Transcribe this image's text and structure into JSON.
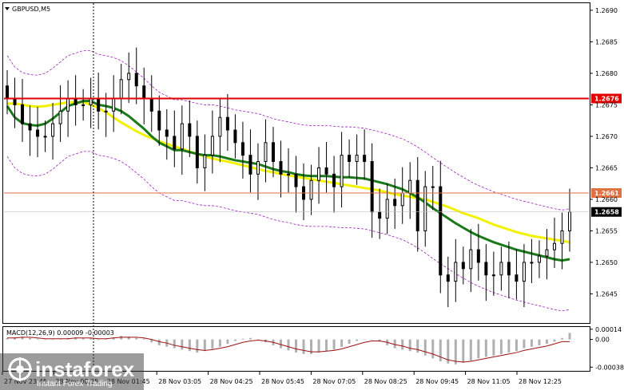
{
  "chart_data": [
    {
      "type": "candlestick",
      "symbol_label": "GBPUSD,M5",
      "price_axis_ticks": [
        "1.2690",
        "1.2685",
        "1.2680",
        "1.2675",
        "1.2670",
        "1.2665",
        "1.2660",
        "1.2655",
        "1.2650",
        "1.2645"
      ],
      "price_axis_tick_values": [
        1.269,
        1.2685,
        1.268,
        1.2675,
        1.267,
        1.2665,
        1.266,
        1.2655,
        1.265,
        1.2645
      ],
      "ylim": [
        1.26405,
        1.2691
      ],
      "time_labels": [
        "27 Nov 23:45",
        "28 Nov 00:25",
        "28 Nov 01:45",
        "28 Nov 03:05",
        "28 Nov 04:25",
        "28 Nov 05:45",
        "28 Nov 07:05",
        "28 Nov 08:25",
        "28 Nov 09:45",
        "28 Nov 11:05",
        "28 Nov 12:25"
      ],
      "horizontal_levels": [
        {
          "label": "1.2676",
          "value": 1.2676,
          "color": "#e00000"
        },
        {
          "label": "1.2661",
          "value": 1.2661,
          "color": "#e07040"
        },
        {
          "label": "1.2658",
          "value": 1.2658,
          "color": "#000000"
        }
      ],
      "close_series": [
        1.2676,
        1.2675,
        1.2672,
        1.2671,
        1.267,
        1.267,
        1.2672,
        1.2674,
        1.2676,
        1.2675,
        1.2675,
        1.2676,
        1.2674,
        1.2674,
        1.2676,
        1.2679,
        1.268,
        1.2678,
        1.2676,
        1.2674,
        1.2671,
        1.267,
        1.2668,
        1.2672,
        1.267,
        1.2665,
        1.2667,
        1.267,
        1.2673,
        1.2671,
        1.2669,
        1.2667,
        1.2664,
        1.2666,
        1.2669,
        1.2666,
        1.2664,
        1.2664,
        1.2662,
        1.266,
        1.2663,
        1.2665,
        1.2664,
        1.2662,
        1.2667,
        1.2666,
        1.2667,
        1.2666,
        1.2658,
        1.2657,
        1.266,
        1.2659,
        1.2661,
        1.2663,
        1.2655,
        1.2662,
        1.2662,
        1.2648,
        1.2647,
        1.265,
        1.2649,
        1.2652,
        1.265,
        1.2648,
        1.2648,
        1.265,
        1.2648,
        1.2647,
        1.265,
        1.265,
        1.2651,
        1.2652,
        1.2653,
        1.2655,
        1.2658
      ],
      "moving_averages": [
        {
          "color": "#f2f200",
          "values": [
            1.26752,
            1.26752,
            1.2675,
            1.26748,
            1.26747,
            1.26748,
            1.2675,
            1.26752,
            1.26754,
            1.26754,
            1.26754,
            1.2675,
            1.26745,
            1.26738,
            1.2673,
            1.26722,
            1.26715,
            1.26708,
            1.26702,
            1.26697,
            1.26692,
            1.26688,
            1.26684,
            1.2668,
            1.26676,
            1.26672,
            1.26668,
            1.26665,
            1.26662,
            1.2666,
            1.26657,
            1.26654,
            1.26651,
            1.26648,
            1.26645,
            1.26643,
            1.2664,
            1.26638,
            1.26636,
            1.26634,
            1.26632,
            1.2663,
            1.26628,
            1.26626,
            1.26624,
            1.26622,
            1.2662,
            1.26618,
            1.26616,
            1.26614,
            1.26611,
            1.26608,
            1.26606,
            1.26604,
            1.26602,
            1.266,
            1.26596,
            1.26592,
            1.26588,
            1.26583,
            1.26578,
            1.26574,
            1.2657,
            1.26565,
            1.2656,
            1.26556,
            1.26552,
            1.26548,
            1.26545,
            1.26542,
            1.2654,
            1.26538,
            1.26536,
            1.26534,
            1.26532
          ]
        },
        {
          "color": "#1a7a1a",
          "values": [
            1.26748,
            1.2673,
            1.26721,
            1.26718,
            1.26717,
            1.2672,
            1.26728,
            1.26738,
            1.26748,
            1.26752,
            1.26756,
            1.26756,
            1.2675,
            1.26748,
            1.26745,
            1.2674,
            1.26732,
            1.26722,
            1.26712,
            1.267,
            1.2669,
            1.26684,
            1.26678,
            1.26678,
            1.26675,
            1.26672,
            1.2667,
            1.2667,
            1.26668,
            1.26665,
            1.26662,
            1.2666,
            1.26658,
            1.26656,
            1.26652,
            1.26648,
            1.26645,
            1.26643,
            1.2664,
            1.26638,
            1.26637,
            1.26637,
            1.26637,
            1.26636,
            1.26635,
            1.26635,
            1.26634,
            1.26633,
            1.2663,
            1.26627,
            1.26624,
            1.2662,
            1.26616,
            1.2661,
            1.26603,
            1.26595,
            1.26586,
            1.26578,
            1.2657,
            1.26562,
            1.26555,
            1.26548,
            1.26542,
            1.26537,
            1.26532,
            1.26528,
            1.26524,
            1.2652,
            1.26517,
            1.26514,
            1.26511,
            1.26508,
            1.26505,
            1.26503,
            1.26505
          ]
        }
      ]
    },
    {
      "type": "histogram",
      "indicator_label": "MACD(12,26,9) 0.00009 -0.00003",
      "axis_ticks": [
        "0.00014",
        "0.00",
        "-0.00038"
      ],
      "axis_tick_values": [
        0.00014,
        0.0,
        -0.00038
      ],
      "ylim": [
        -0.00042,
        0.00016
      ],
      "histogram": [
        2e-05,
        3e-05,
        4e-05,
        2e-05,
        1e-05,
        0.0,
        0.0,
        1e-05,
        2e-05,
        3e-05,
        2e-05,
        2e-05,
        0.0,
        1e-05,
        3e-05,
        5e-05,
        4e-05,
        2e-05,
        1e-05,
        -4e-05,
        -8e-05,
        -0.0001,
        -0.00012,
        -0.00014,
        -0.00016,
        -0.00018,
        -0.00016,
        -0.00013,
        -0.0001,
        -6e-05,
        -2e-05,
        1e-05,
        2e-05,
        0.0,
        -4e-05,
        -8e-05,
        -0.00012,
        -0.00015,
        -0.00018,
        -0.0002,
        -0.0002,
        -0.00018,
        -0.00016,
        -0.00014,
        -0.0001,
        -6e-05,
        -2e-05,
        0.0,
        0.0,
        -3e-05,
        -8e-05,
        -0.00012,
        -0.00014,
        -0.00016,
        -0.00018,
        -0.00022,
        -0.00026,
        -0.0003,
        -0.00033,
        -0.00034,
        -0.00032,
        -0.00029,
        -0.00026,
        -0.00024,
        -0.00022,
        -0.0002,
        -0.00018,
        -0.00016,
        -0.00012,
        -0.0001,
        -8e-05,
        -6e-05,
        -3e-05,
        2e-05,
        9e-05
      ],
      "signal_line": [
        2e-05,
        2e-05,
        3e-05,
        3e-05,
        2e-05,
        1e-05,
        1e-05,
        1e-05,
        1e-05,
        2e-05,
        2e-05,
        2e-05,
        1e-05,
        1e-05,
        2e-05,
        3e-05,
        3e-05,
        3e-05,
        2e-05,
        0.0,
        -3e-05,
        -5e-05,
        -8e-05,
        -0.0001,
        -0.00012,
        -0.00014,
        -0.00015,
        -0.00014,
        -0.00012,
        -0.0001,
        -7e-05,
        -4e-05,
        -2e-05,
        -1e-05,
        -2e-05,
        -4e-05,
        -7e-05,
        -0.0001,
        -0.00013,
        -0.00015,
        -0.00017,
        -0.00017,
        -0.00016,
        -0.00015,
        -0.00013,
        -0.0001,
        -7e-05,
        -4e-05,
        -2e-05,
        -2e-05,
        -4e-05,
        -7e-05,
        -9e-05,
        -0.00012,
        -0.00014,
        -0.00017,
        -0.0002,
        -0.00024,
        -0.00028,
        -0.0003,
        -0.00031,
        -0.0003,
        -0.00028,
        -0.00026,
        -0.00024,
        -0.00022,
        -0.0002,
        -0.00018,
        -0.00015,
        -0.00013,
        -0.00011,
        -9e-05,
        -6e-05,
        -3e-05,
        -3e-05
      ]
    }
  ],
  "watermark": {
    "brand": "instaforex",
    "tagline": "Instant Forex Trading"
  },
  "colors": {
    "bull_bear_candle": "#000000",
    "ma_fast": "#f2f200",
    "ma_slow": "#1a7a1a",
    "envelope": "#a020c0",
    "resistance_line": "#e00000",
    "level_line": "#e07040",
    "macd_hist": "#b0b0b0",
    "macd_signal": "#a01010"
  }
}
